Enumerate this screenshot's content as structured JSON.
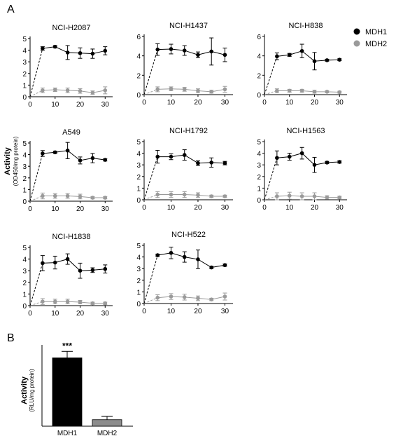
{
  "panel_labels": {
    "a": "A",
    "b": "B"
  },
  "colors": {
    "mdh1": "#000000",
    "mdh2": "#9a9a9a",
    "mdh2_bar": "#8c8c8c",
    "axis": "#000000"
  },
  "legend": {
    "entries": [
      "MDH1",
      "MDH2"
    ]
  },
  "y_axis_a": {
    "label": "Activity",
    "sublabel": "(OD450/mg protein)"
  },
  "y_axis_b": {
    "label": "Activity",
    "sublabel": "(RLU/mg protein)"
  },
  "chart_data": [
    {
      "type": "line",
      "title": "NCI-H2087",
      "x": [
        0,
        5,
        10,
        15,
        20,
        25,
        30
      ],
      "xticks": [
        0,
        10,
        20,
        30
      ],
      "yticks": [
        0,
        1,
        2,
        3,
        4,
        5
      ],
      "xlim": [
        0,
        33
      ],
      "ylim": [
        0,
        5
      ],
      "series": [
        {
          "name": "MDH1",
          "values": [
            0,
            4.15,
            4.3,
            3.8,
            3.75,
            3.7,
            3.95
          ],
          "errors": [
            0,
            0.15,
            0.1,
            0.6,
            0.45,
            0.4,
            0.35
          ]
        },
        {
          "name": "MDH2",
          "values": [
            0,
            0.55,
            0.6,
            0.55,
            0.5,
            0.35,
            0.55
          ],
          "errors": [
            0,
            0.2,
            0.15,
            0.2,
            0.2,
            0.15,
            0.3
          ]
        }
      ]
    },
    {
      "type": "line",
      "title": "NCI-H1437",
      "x": [
        0,
        5,
        10,
        15,
        20,
        25,
        30
      ],
      "xticks": [
        0,
        10,
        20,
        30
      ],
      "yticks": [
        0,
        2,
        4,
        6
      ],
      "xlim": [
        0,
        33
      ],
      "ylim": [
        0,
        6
      ],
      "series": [
        {
          "name": "MDH1",
          "values": [
            0,
            4.65,
            4.7,
            4.55,
            4.1,
            4.45,
            4.1
          ],
          "errors": [
            0,
            0.6,
            0.5,
            0.5,
            0.3,
            1.4,
            0.7
          ]
        },
        {
          "name": "MDH2",
          "values": [
            0,
            0.55,
            0.6,
            0.55,
            0.4,
            0.3,
            0.55
          ],
          "errors": [
            0,
            0.25,
            0.2,
            0.2,
            0.2,
            0.15,
            0.3
          ]
        }
      ]
    },
    {
      "type": "line",
      "title": "NCI-H838",
      "x": [
        0,
        5,
        10,
        15,
        20,
        25,
        30
      ],
      "xticks": [
        0,
        10,
        20,
        30
      ],
      "yticks": [
        0,
        2,
        4,
        6
      ],
      "xlim": [
        0,
        33
      ],
      "ylim": [
        0,
        6
      ],
      "series": [
        {
          "name": "MDH1",
          "values": [
            0,
            3.95,
            4.1,
            4.5,
            3.45,
            3.55,
            3.6
          ],
          "errors": [
            0,
            0.35,
            0.15,
            0.7,
            0.9,
            0.1,
            0.1
          ]
        },
        {
          "name": "MDH2",
          "values": [
            0,
            0.4,
            0.4,
            0.4,
            0.3,
            0.3,
            0.25
          ],
          "errors": [
            0,
            0.2,
            0.15,
            0.15,
            0.15,
            0.1,
            0.1
          ]
        }
      ]
    },
    {
      "type": "line",
      "title": "A549",
      "x": [
        0,
        5,
        10,
        15,
        20,
        25,
        30
      ],
      "xticks": [
        0,
        10,
        20,
        30
      ],
      "yticks": [
        0,
        1,
        2,
        3,
        4,
        5
      ],
      "xlim": [
        0,
        33
      ],
      "ylim": [
        0,
        5
      ],
      "series": [
        {
          "name": "MDH1",
          "values": [
            0,
            4.1,
            4.2,
            4.35,
            3.5,
            3.7,
            3.55
          ],
          "errors": [
            0,
            0.25,
            0.1,
            0.7,
            0.3,
            0.4,
            0.1
          ]
        },
        {
          "name": "MDH2",
          "values": [
            0,
            0.45,
            0.45,
            0.45,
            0.4,
            0.3,
            0.3
          ],
          "errors": [
            0,
            0.25,
            0.2,
            0.2,
            0.2,
            0.1,
            0.1
          ]
        }
      ]
    },
    {
      "type": "line",
      "title": "NCI-H1792",
      "x": [
        0,
        5,
        10,
        15,
        20,
        25,
        30
      ],
      "xticks": [
        0,
        10,
        20,
        30
      ],
      "yticks": [
        0,
        1,
        2,
        3,
        4,
        5
      ],
      "xlim": [
        0,
        33
      ],
      "ylim": [
        0,
        5
      ],
      "series": [
        {
          "name": "MDH1",
          "values": [
            0,
            3.7,
            3.7,
            3.85,
            3.15,
            3.2,
            3.15
          ],
          "errors": [
            0,
            0.55,
            0.25,
            0.45,
            0.2,
            0.4,
            0.15
          ]
        },
        {
          "name": "MDH2",
          "values": [
            0,
            0.45,
            0.45,
            0.45,
            0.4,
            0.3,
            0.3
          ],
          "errors": [
            0,
            0.25,
            0.25,
            0.25,
            0.2,
            0.1,
            0.1
          ]
        }
      ]
    },
    {
      "type": "line",
      "title": "NCI-H1563",
      "x": [
        0,
        5,
        10,
        15,
        20,
        25,
        30
      ],
      "xticks": [
        0,
        10,
        20,
        30
      ],
      "yticks": [
        0,
        1,
        2,
        3,
        4,
        5
      ],
      "xlim": [
        0,
        33
      ],
      "ylim": [
        0,
        5
      ],
      "series": [
        {
          "name": "MDH1",
          "values": [
            0,
            3.6,
            3.7,
            4.0,
            3.0,
            3.2,
            3.25
          ],
          "errors": [
            0,
            0.6,
            0.3,
            0.5,
            0.65,
            0.1,
            0.1
          ]
        },
        {
          "name": "MDH2",
          "values": [
            0,
            0.3,
            0.35,
            0.3,
            0.3,
            0.2,
            0.2
          ],
          "errors": [
            0,
            0.3,
            0.3,
            0.3,
            0.3,
            0.15,
            0.1
          ]
        }
      ]
    },
    {
      "type": "line",
      "title": "NCI-H1838",
      "x": [
        0,
        5,
        10,
        15,
        20,
        25,
        30
      ],
      "xticks": [
        0,
        10,
        20,
        30
      ],
      "yticks": [
        0,
        1,
        2,
        3,
        4,
        5
      ],
      "xlim": [
        0,
        33
      ],
      "ylim": [
        0,
        5
      ],
      "series": [
        {
          "name": "MDH1",
          "values": [
            0,
            3.65,
            3.7,
            4.0,
            3.0,
            3.05,
            3.15
          ],
          "errors": [
            0,
            0.65,
            0.55,
            0.45,
            0.65,
            0.2,
            0.35
          ]
        },
        {
          "name": "MDH2",
          "values": [
            0,
            0.35,
            0.35,
            0.35,
            0.3,
            0.2,
            0.2
          ],
          "errors": [
            0,
            0.25,
            0.2,
            0.2,
            0.15,
            0.1,
            0.1
          ]
        }
      ]
    },
    {
      "type": "line",
      "title": "NCI-H522",
      "x": [
        0,
        5,
        10,
        15,
        20,
        25,
        30
      ],
      "xticks": [
        0,
        10,
        20,
        30
      ],
      "yticks": [
        0,
        1,
        2,
        3,
        4,
        5
      ],
      "xlim": [
        0,
        33
      ],
      "ylim": [
        0,
        5
      ],
      "series": [
        {
          "name": "MDH1",
          "values": [
            0,
            4.15,
            4.35,
            4.0,
            3.8,
            3.1,
            3.3
          ],
          "errors": [
            0,
            0.1,
            0.5,
            0.45,
            0.8,
            0.1,
            0.1
          ]
        },
        {
          "name": "MDH2",
          "values": [
            0,
            0.5,
            0.6,
            0.55,
            0.45,
            0.35,
            0.6
          ],
          "errors": [
            0,
            0.25,
            0.25,
            0.25,
            0.2,
            0.1,
            0.3
          ]
        }
      ]
    },
    {
      "type": "bar",
      "title": "",
      "categories": [
        "MDH1",
        "MDH2"
      ],
      "values": [
        4.2,
        0.4
      ],
      "errors": [
        0.4,
        0.2
      ],
      "annotations": [
        {
          "category": "MDH1",
          "text": "***"
        }
      ],
      "ylim": [
        0,
        5
      ]
    }
  ]
}
